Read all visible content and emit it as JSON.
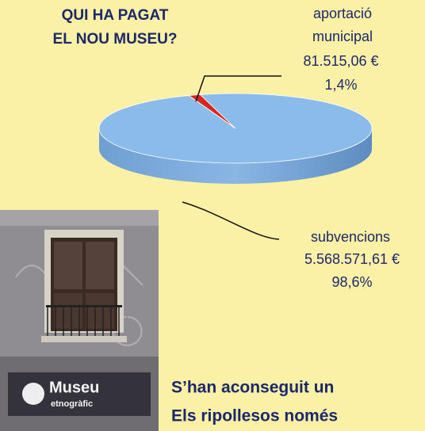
{
  "chart_data": {
    "type": "pie",
    "title": [
      "QUI HA PAGAT",
      "EL NOU MUSEU?"
    ],
    "categories": [
      [
        "aportació",
        "municipal"
      ],
      [
        "subvencions"
      ]
    ],
    "values": [
      1.4,
      98.6
    ],
    "value_labels": [
      "1,4%",
      "98,6%"
    ],
    "amounts": [
      "81.515,06 €",
      "5.568.571,61 €"
    ],
    "colors": [
      "#d8261e",
      "#8bbbe9"
    ]
  },
  "photo": {
    "sign": [
      "Museu",
      "etnogràfic"
    ]
  },
  "article": {
    "lines": [
      "S’han aconseguit un",
      "Els ripollesos només"
    ]
  }
}
